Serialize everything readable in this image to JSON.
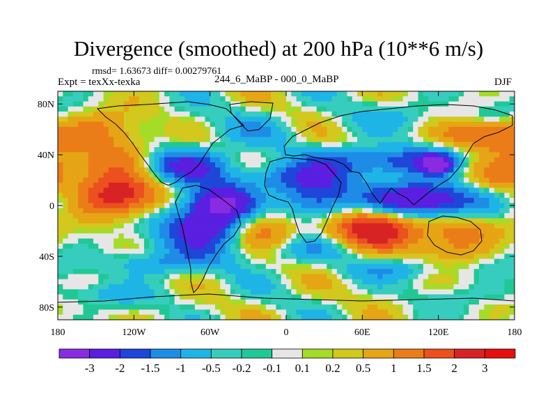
{
  "title": "Divergence (smoothed) at 200 hPa (10**6 m/s)",
  "stats": "rmsd= 1.63673 diff= 0.00279761",
  "experiment": "Expt = texXx-texka",
  "runs": "244_6_MaBP - 000_0_MaBP",
  "season": "DJF",
  "chart_data": {
    "type": "heatmap",
    "title": "Divergence (smoothed) at 200 hPa (10**6 m/s)",
    "xlabel": "",
    "ylabel": "",
    "xlim": [
      -180,
      180
    ],
    "ylim": [
      -90,
      90
    ],
    "x_ticks": [
      {
        "value": -180,
        "label": "180"
      },
      {
        "value": -120,
        "label": "120W"
      },
      {
        "value": -60,
        "label": "60W"
      },
      {
        "value": 0,
        "label": "0"
      },
      {
        "value": 60,
        "label": "60E"
      },
      {
        "value": 120,
        "label": "120E"
      },
      {
        "value": 180,
        "label": "180"
      }
    ],
    "y_ticks": [
      {
        "value": 80,
        "label": "80N"
      },
      {
        "value": 40,
        "label": "40N"
      },
      {
        "value": 0,
        "label": "0"
      },
      {
        "value": -40,
        "label": "40S"
      },
      {
        "value": -80,
        "label": "80S"
      }
    ],
    "colorbar": {
      "levels": [
        "-3",
        "-2",
        "-1.5",
        "-1",
        "-0.5",
        "-0.2",
        "-0.1",
        "0.1",
        "0.2",
        "0.5",
        "1",
        "1.5",
        "2",
        "3"
      ],
      "colors": [
        "#8a2be2",
        "#5a1fe0",
        "#1e46d8",
        "#1e8ce6",
        "#1fb4e6",
        "#37cdbe",
        "#20c896",
        "#e6e6e6",
        "#a5dc28",
        "#d2c81e",
        "#e6a514",
        "#eb7d19",
        "#eb501e",
        "#d72323",
        "#e60f0f"
      ]
    },
    "features": [
      {
        "lon": 150,
        "lat": 5,
        "value": -3,
        "sx": 35,
        "sy": 12
      },
      {
        "lon": -60,
        "lat": -15,
        "value": -3,
        "sx": 28,
        "sy": 14
      },
      {
        "lon": -50,
        "lat": 3,
        "value": -2.5,
        "sx": 18,
        "sy": 9
      },
      {
        "lon": 25,
        "lat": 3,
        "value": -2.5,
        "sx": 22,
        "sy": 12
      },
      {
        "lon": 95,
        "lat": 3,
        "value": -2.5,
        "sx": 25,
        "sy": 10
      },
      {
        "lon": -90,
        "lat": 32,
        "value": -2.5,
        "sx": 28,
        "sy": 10
      },
      {
        "lon": 0,
        "lat": 22,
        "value": -1.5,
        "sx": 30,
        "sy": 8
      },
      {
        "lon": 80,
        "lat": 35,
        "value": -2,
        "sx": 40,
        "sy": 8
      },
      {
        "lon": 118,
        "lat": 32,
        "value": -3,
        "sx": 8,
        "sy": 5
      },
      {
        "lon": -135,
        "lat": 5,
        "value": 2.5,
        "sx": 28,
        "sy": 12
      },
      {
        "lon": -125,
        "lat": 35,
        "value": 2,
        "sx": 25,
        "sy": 12
      },
      {
        "lon": 165,
        "lat": 15,
        "value": 2.5,
        "sx": 22,
        "sy": 15
      },
      {
        "lon": -20,
        "lat": -15,
        "value": 2,
        "sx": 22,
        "sy": 15
      },
      {
        "lon": 70,
        "lat": -15,
        "value": 2.5,
        "sx": 30,
        "sy": 14
      },
      {
        "lon": 135,
        "lat": -20,
        "value": 1.5,
        "sx": 20,
        "sy": 15
      },
      {
        "lon": 10,
        "lat": -35,
        "value": -1,
        "sx": 30,
        "sy": 7
      },
      {
        "lon": -100,
        "lat": -45,
        "value": -1,
        "sx": 35,
        "sy": 7
      },
      {
        "lon": 90,
        "lat": -50,
        "value": -0.7,
        "sx": 40,
        "sy": 6
      },
      {
        "lon": -150,
        "lat": -70,
        "value": -0.5,
        "sx": 45,
        "sy": 6
      },
      {
        "lon": 100,
        "lat": 70,
        "value": -0.5,
        "sx": 40,
        "sy": 8
      },
      {
        "lon": -150,
        "lat": 60,
        "value": 1,
        "sx": 25,
        "sy": 10
      },
      {
        "lon": 150,
        "lat": 55,
        "value": 1.5,
        "sx": 25,
        "sy": 8
      },
      {
        "lon": -30,
        "lat": 60,
        "value": -0.5,
        "sx": 30,
        "sy": 10
      }
    ]
  }
}
